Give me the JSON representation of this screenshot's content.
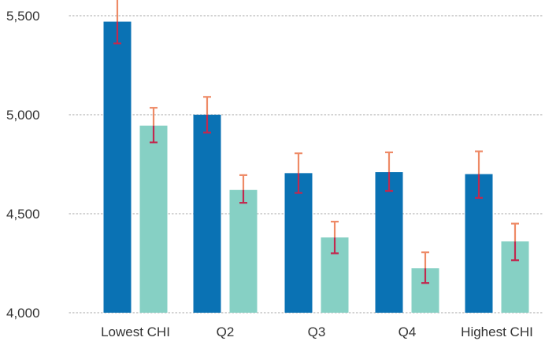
{
  "chart_data": {
    "type": "bar",
    "categories": [
      "Lowest CHI",
      "Q2",
      "Q3",
      "Q4",
      "Highest CHI"
    ],
    "series": [
      {
        "values": [
          5470,
          5000,
          4705,
          4710,
          4700
        ],
        "error_low": [
          5360,
          4910,
          4605,
          4615,
          4580
        ],
        "error_high": [
          5600,
          5090,
          4805,
          4810,
          4815
        ]
      },
      {
        "values": [
          4945,
          4620,
          4380,
          4225,
          4360
        ],
        "error_low": [
          4860,
          4555,
          4300,
          4150,
          4265
        ],
        "error_high": [
          5035,
          4695,
          4460,
          4305,
          4450
        ]
      }
    ],
    "y_ticks": [
      "4,000",
      "4,500",
      "5,000",
      "5,500"
    ],
    "ylim": [
      4000,
      5600
    ],
    "grid": "horizontal dotted",
    "colors": {
      "bar_series_1": "#0a72b4",
      "bar_series_2": "#86d0c4",
      "error_top": "#ee8a66",
      "error_bottom": "#c1294f",
      "gridline": "#b6b6b6"
    }
  }
}
